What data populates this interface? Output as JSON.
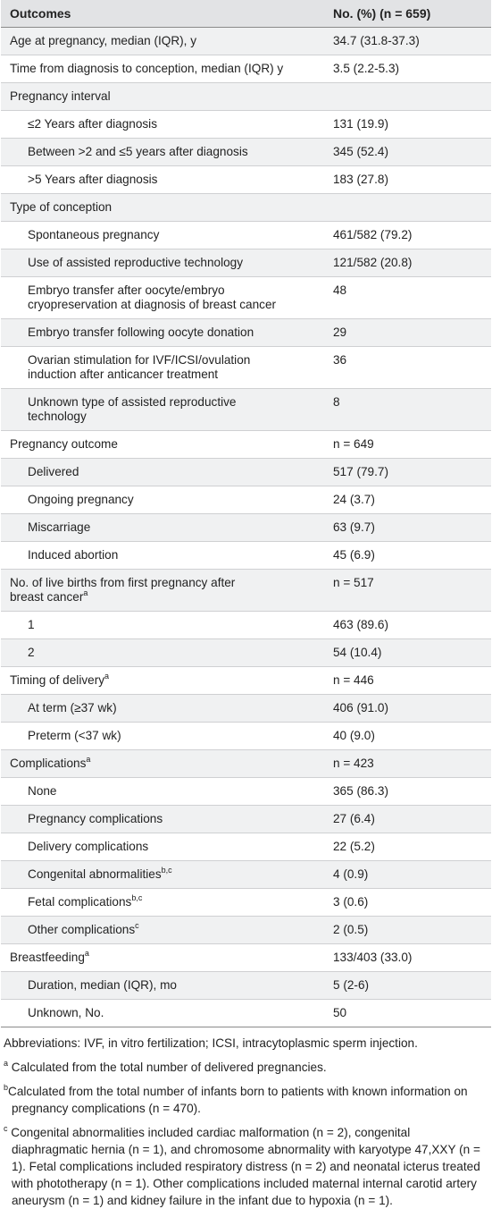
{
  "header": {
    "col1": "Outcomes",
    "col2": "No. (%) (n = 659)"
  },
  "rows": [
    {
      "label": "Age at pregnancy, median (IQR), y",
      "value": "34.7 (31.8-37.3)",
      "indent": false
    },
    {
      "label": "Time from diagnosis to conception, median (IQR) y",
      "value": "3.5 (2.2-5.3)",
      "indent": false
    },
    {
      "label": "Pregnancy interval",
      "value": "",
      "indent": false
    },
    {
      "label": "≤2 Years after diagnosis",
      "value": "131 (19.9)",
      "indent": true
    },
    {
      "label": "Between >2 and ≤5 years after diagnosis",
      "value": "345 (52.4)",
      "indent": true
    },
    {
      "label": ">5 Years after diagnosis",
      "value": "183 (27.8)",
      "indent": true
    },
    {
      "label": "Type of conception",
      "value": "",
      "indent": false
    },
    {
      "label": "Spontaneous pregnancy",
      "value": "461/582 (79.2)",
      "indent": true
    },
    {
      "label": "Use of assisted reproductive technology",
      "value": "121/582 (20.8)",
      "indent": true
    },
    {
      "label": "Embryo transfer after oocyte/embryo cryopreservation at diagnosis of breast cancer",
      "value": "48",
      "indent": true
    },
    {
      "label": "Embryo transfer following oocyte donation",
      "value": "29",
      "indent": true
    },
    {
      "label": "Ovarian stimulation for IVF/ICSI/ovulation induction after anticancer treatment",
      "value": "36",
      "indent": true
    },
    {
      "label": "Unknown type of assisted reproductive technology",
      "value": "8",
      "indent": true
    },
    {
      "label": "Pregnancy outcome",
      "value": "n = 649",
      "indent": false
    },
    {
      "label": "Delivered",
      "value": "517 (79.7)",
      "indent": true
    },
    {
      "label": "Ongoing pregnancy",
      "value": "24 (3.7)",
      "indent": true
    },
    {
      "label": "Miscarriage",
      "value": "63 (9.7)",
      "indent": true
    },
    {
      "label": "Induced abortion",
      "value": "45 (6.9)",
      "indent": true
    },
    {
      "label": "No. of live births from first pregnancy after breast cancer",
      "sup": "a",
      "value": "n = 517",
      "indent": false,
      "wrapWidth": "270px"
    },
    {
      "label": "1",
      "value": "463 (89.6)",
      "indent": true
    },
    {
      "label": "2",
      "value": "54 (10.4)",
      "indent": true
    },
    {
      "label": "Timing of delivery",
      "sup": "a",
      "value": "n = 446",
      "indent": false
    },
    {
      "label": "At term (≥37 wk)",
      "value": "406 (91.0)",
      "indent": true
    },
    {
      "label": "Preterm (<37 wk)",
      "value": "40 (9.0)",
      "indent": true
    },
    {
      "label": "Complications",
      "sup": "a",
      "value": "n = 423",
      "indent": false
    },
    {
      "label": "None",
      "value": "365 (86.3)",
      "indent": true
    },
    {
      "label": "Pregnancy complications",
      "value": "27 (6.4)",
      "indent": true
    },
    {
      "label": "Delivery complications",
      "value": "22 (5.2)",
      "indent": true
    },
    {
      "label": "Congenital abnormalities",
      "sup": "b,c",
      "value": "4 (0.9)",
      "indent": true
    },
    {
      "label": "Fetal complications",
      "sup": "b,c",
      "value": "3 (0.6)",
      "indent": true
    },
    {
      "label": "Other complications",
      "sup": "c",
      "value": "2 (0.5)",
      "indent": true
    },
    {
      "label": "Breastfeeding",
      "sup": "a",
      "value": "133/403 (33.0)",
      "indent": false
    },
    {
      "label": "Duration, median (IQR), mo",
      "value": "5 (2-6)",
      "indent": true
    },
    {
      "label": "Unknown, No.",
      "value": "50",
      "indent": true
    }
  ],
  "footnotes": {
    "abbreviations": "Abbreviations: IVF, in vitro fertilization; ICSI, intracytoplasmic sperm injection.",
    "a_mark": "a",
    "a_text": "Calculated from the total number of delivered pregnancies.",
    "b_mark": "b",
    "b_text": "Calculated from the total number of infants born to patients with known information on pregnancy complications (n = 470).",
    "c_mark": "c",
    "c_text": "Congenital abnormalities included cardiac malformation (n = 2), congenital diaphragmatic hernia (n = 1), and chromosome abnormality with karyotype 47,XXY (n = 1). Fetal complications included respiratory distress (n = 2) and neonatal icterus treated with phototherapy (n = 1). Other complications included maternal internal carotid artery aneurysm (n = 1) and kidney failure in the infant due to hypoxia (n = 1)."
  }
}
